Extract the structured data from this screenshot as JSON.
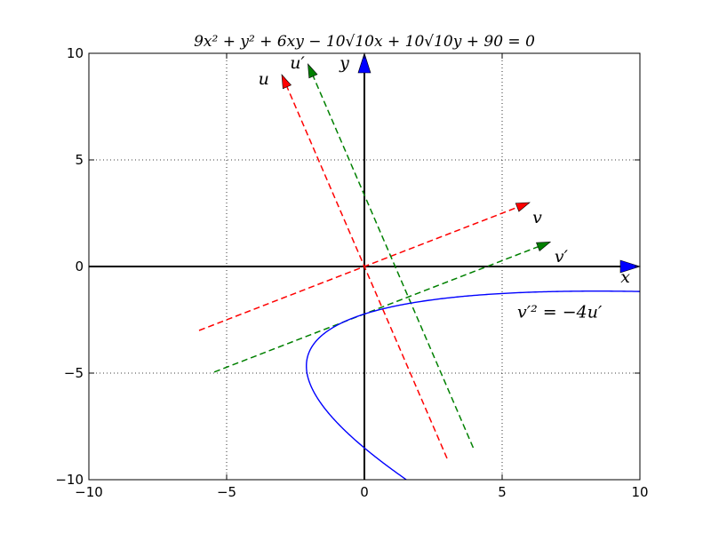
{
  "chart_data": {
    "type": "line",
    "title": "9x² + y² + 6xy − 10√10x + 10√10y + 90 = 0",
    "xlim": [
      -10,
      10
    ],
    "ylim": [
      -10,
      10
    ],
    "xticks": [
      -10,
      -5,
      0,
      5,
      10
    ],
    "yticks": [
      -10,
      -5,
      0,
      5,
      10
    ],
    "xtick_labels": [
      "−10",
      "−5",
      "0",
      "5",
      "10"
    ],
    "ytick_labels": [
      "−10",
      "−5",
      "0",
      "5",
      "10"
    ],
    "grid": true,
    "axis_arrows": [
      {
        "name": "x",
        "from": [
          0,
          0
        ],
        "to": [
          10,
          0
        ],
        "color": "#0000ff"
      },
      {
        "name": "y",
        "from": [
          0,
          0
        ],
        "to": [
          0,
          10
        ],
        "color": "#0000ff"
      }
    ],
    "dashed_axes": [
      {
        "name": "u",
        "from": [
          3,
          -9
        ],
        "to": [
          -3,
          9
        ],
        "color": "#ff0000"
      },
      {
        "name": "v",
        "from": [
          -6,
          -3
        ],
        "to": [
          6,
          3
        ],
        "color": "#ff0000"
      },
      {
        "name": "u′",
        "from": [
          3.95,
          -8.5
        ],
        "to": [
          -2.05,
          9.5
        ],
        "color": "#008000"
      },
      {
        "name": "v′",
        "from": [
          -5.45,
          -4.95
        ],
        "to": [
          6.75,
          1.15
        ],
        "color": "#008000"
      }
    ],
    "curve": {
      "equation": "v′² = −4u′",
      "color": "#0000ff",
      "u_range": [
        -9.03,
        0.05
      ],
      "v_range": [
        -4.6,
        6.5
      ]
    },
    "labels": [
      {
        "text": "x",
        "at": [
          9.3,
          -0.75
        ],
        "size": 19
      },
      {
        "text": "y",
        "at": [
          -0.9,
          9.3
        ],
        "size": 19
      },
      {
        "text": "u",
        "at": [
          -3.85,
          8.55
        ],
        "size": 19
      },
      {
        "text": "u′",
        "at": [
          -2.7,
          9.3
        ],
        "size": 19
      },
      {
        "text": "v",
        "at": [
          6.1,
          2.05
        ],
        "size": 19
      },
      {
        "text": "v′",
        "at": [
          6.9,
          0.2
        ],
        "size": 19
      },
      {
        "text": "v′² = −4u′",
        "at": [
          5.55,
          -2.4
        ],
        "size": 19
      }
    ]
  }
}
